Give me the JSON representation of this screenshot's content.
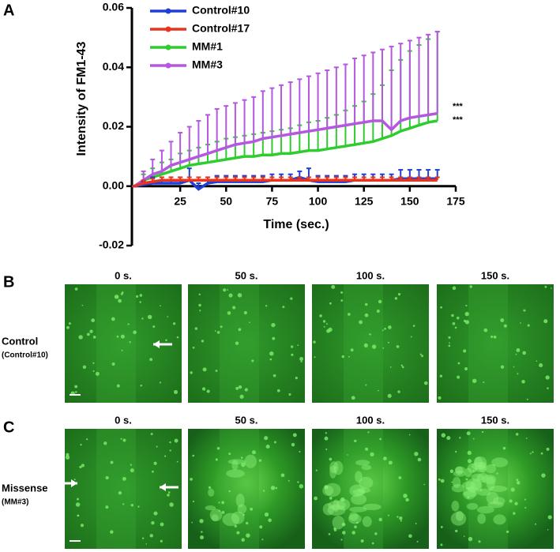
{
  "chart_data": {
    "type": "line",
    "x_label": "Time (sec.)",
    "y_label": "Intensity of FM1-43",
    "x": [
      0,
      5,
      10,
      15,
      20,
      25,
      30,
      35,
      40,
      45,
      50,
      55,
      60,
      65,
      70,
      75,
      80,
      85,
      90,
      95,
      100,
      105,
      110,
      115,
      120,
      125,
      130,
      135,
      140,
      145,
      150,
      155,
      160,
      165
    ],
    "xlim": [
      0,
      175
    ],
    "xticks": [
      25,
      50,
      75,
      100,
      125,
      150,
      175
    ],
    "ylim": [
      -0.02,
      0.06
    ],
    "yticks": [
      {
        "value": -0.02,
        "label": "-0.02"
      },
      {
        "value": 0,
        "label": "0.00"
      },
      {
        "value": 0.02,
        "label": "0.02"
      },
      {
        "value": 0.04,
        "label": "0.04"
      },
      {
        "value": 0.06,
        "label": "0.06"
      }
    ],
    "series": [
      {
        "name": "Control#10",
        "color": "#1f3fd6",
        "values": [
          0,
          0.0005,
          0.001,
          0.001,
          0.001,
          0.001,
          0.002,
          -0.001,
          0.001,
          0.0015,
          0.0015,
          0.0015,
          0.0015,
          0.0015,
          0.0015,
          0.002,
          0.002,
          0.002,
          0.003,
          0.002,
          0.0015,
          0.0015,
          0.0015,
          0.0015,
          0.002,
          0.002,
          0.002,
          0.002,
          0.002,
          0.0025,
          0.0025,
          0.0025,
          0.0025,
          0.0025
        ],
        "errors": [
          0,
          0.001,
          0.002,
          0.002,
          0.002,
          0.002,
          0.004,
          0.002,
          0.002,
          0.002,
          0.002,
          0.002,
          0.002,
          0.002,
          0.002,
          0.002,
          0.002,
          0.002,
          0.002,
          0.004,
          0.002,
          0.002,
          0.002,
          0.002,
          0.002,
          0.002,
          0.002,
          0.002,
          0.002,
          0.003,
          0.003,
          0.003,
          0.003,
          0.003
        ]
      },
      {
        "name": "Control#17",
        "color": "#e8341c",
        "values": [
          0,
          0.001,
          0.0015,
          0.002,
          0.002,
          0.002,
          0.002,
          0.002,
          0.002,
          0.002,
          0.002,
          0.002,
          0.002,
          0.002,
          0.002,
          0.002,
          0.002,
          0.002,
          0.002,
          0.002,
          0.002,
          0.002,
          0.002,
          0.002,
          0.002,
          0.002,
          0.002,
          0.002,
          0.002,
          0.002,
          0.002,
          0.002,
          0.002,
          0.002
        ],
        "errors": [
          0,
          0.001,
          0.001,
          0.001,
          0.001,
          0.001,
          0.001,
          0.001,
          0.001,
          0.001,
          0.001,
          0.001,
          0.001,
          0.001,
          0.001,
          0.001,
          0.001,
          0.001,
          0.001,
          0.001,
          0.001,
          0.001,
          0.001,
          0.001,
          0.001,
          0.001,
          0.001,
          0.001,
          0.001,
          0.001,
          0.001,
          0.001,
          0.001,
          0.001
        ]
      },
      {
        "name": "MM#1",
        "color": "#2ecc2e",
        "values": [
          0,
          0.002,
          0.003,
          0.004,
          0.005,
          0.006,
          0.007,
          0.0075,
          0.008,
          0.0085,
          0.009,
          0.0095,
          0.01,
          0.01,
          0.0105,
          0.0105,
          0.011,
          0.011,
          0.0115,
          0.012,
          0.012,
          0.0125,
          0.013,
          0.0135,
          0.014,
          0.0145,
          0.015,
          0.016,
          0.017,
          0.0185,
          0.0195,
          0.0205,
          0.0215,
          0.022
        ],
        "errors": [
          0,
          0.002,
          0.003,
          0.004,
          0.004,
          0.005,
          0.005,
          0.0055,
          0.006,
          0.0065,
          0.007,
          0.007,
          0.007,
          0.0075,
          0.0075,
          0.008,
          0.008,
          0.0085,
          0.009,
          0.0095,
          0.01,
          0.0105,
          0.011,
          0.012,
          0.013,
          0.014,
          0.016,
          0.018,
          0.022,
          0.024,
          0.026,
          0.027,
          0.028,
          0.03
        ]
      },
      {
        "name": "MM#3",
        "color": "#b557e0",
        "values": [
          0,
          0.002,
          0.004,
          0.005,
          0.007,
          0.008,
          0.009,
          0.01,
          0.011,
          0.012,
          0.013,
          0.014,
          0.0145,
          0.015,
          0.016,
          0.0165,
          0.017,
          0.0175,
          0.018,
          0.0185,
          0.019,
          0.0195,
          0.02,
          0.0205,
          0.021,
          0.0215,
          0.022,
          0.022,
          0.019,
          0.022,
          0.023,
          0.0235,
          0.024,
          0.0245
        ],
        "errors": [
          0,
          0.003,
          0.005,
          0.007,
          0.008,
          0.01,
          0.011,
          0.012,
          0.013,
          0.014,
          0.014,
          0.014,
          0.0145,
          0.015,
          0.016,
          0.0165,
          0.017,
          0.0175,
          0.018,
          0.0185,
          0.019,
          0.0195,
          0.02,
          0.0205,
          0.022,
          0.0225,
          0.023,
          0.024,
          0.028,
          0.026,
          0.026,
          0.0265,
          0.027,
          0.0275
        ]
      }
    ],
    "annotations": [
      "***",
      "***"
    ]
  },
  "panels": {
    "a": "A",
    "b": "B",
    "c": "C",
    "b_times": [
      "0 s.",
      "50 s.",
      "100 s.",
      "150 s."
    ],
    "c_times": [
      "0 s.",
      "50 s.",
      "100 s.",
      "150 s."
    ],
    "b_row_label": "Control",
    "b_row_sublabel": "(Control#10)",
    "c_row_label": "Missense",
    "c_row_sublabel": "(MM#3)"
  }
}
